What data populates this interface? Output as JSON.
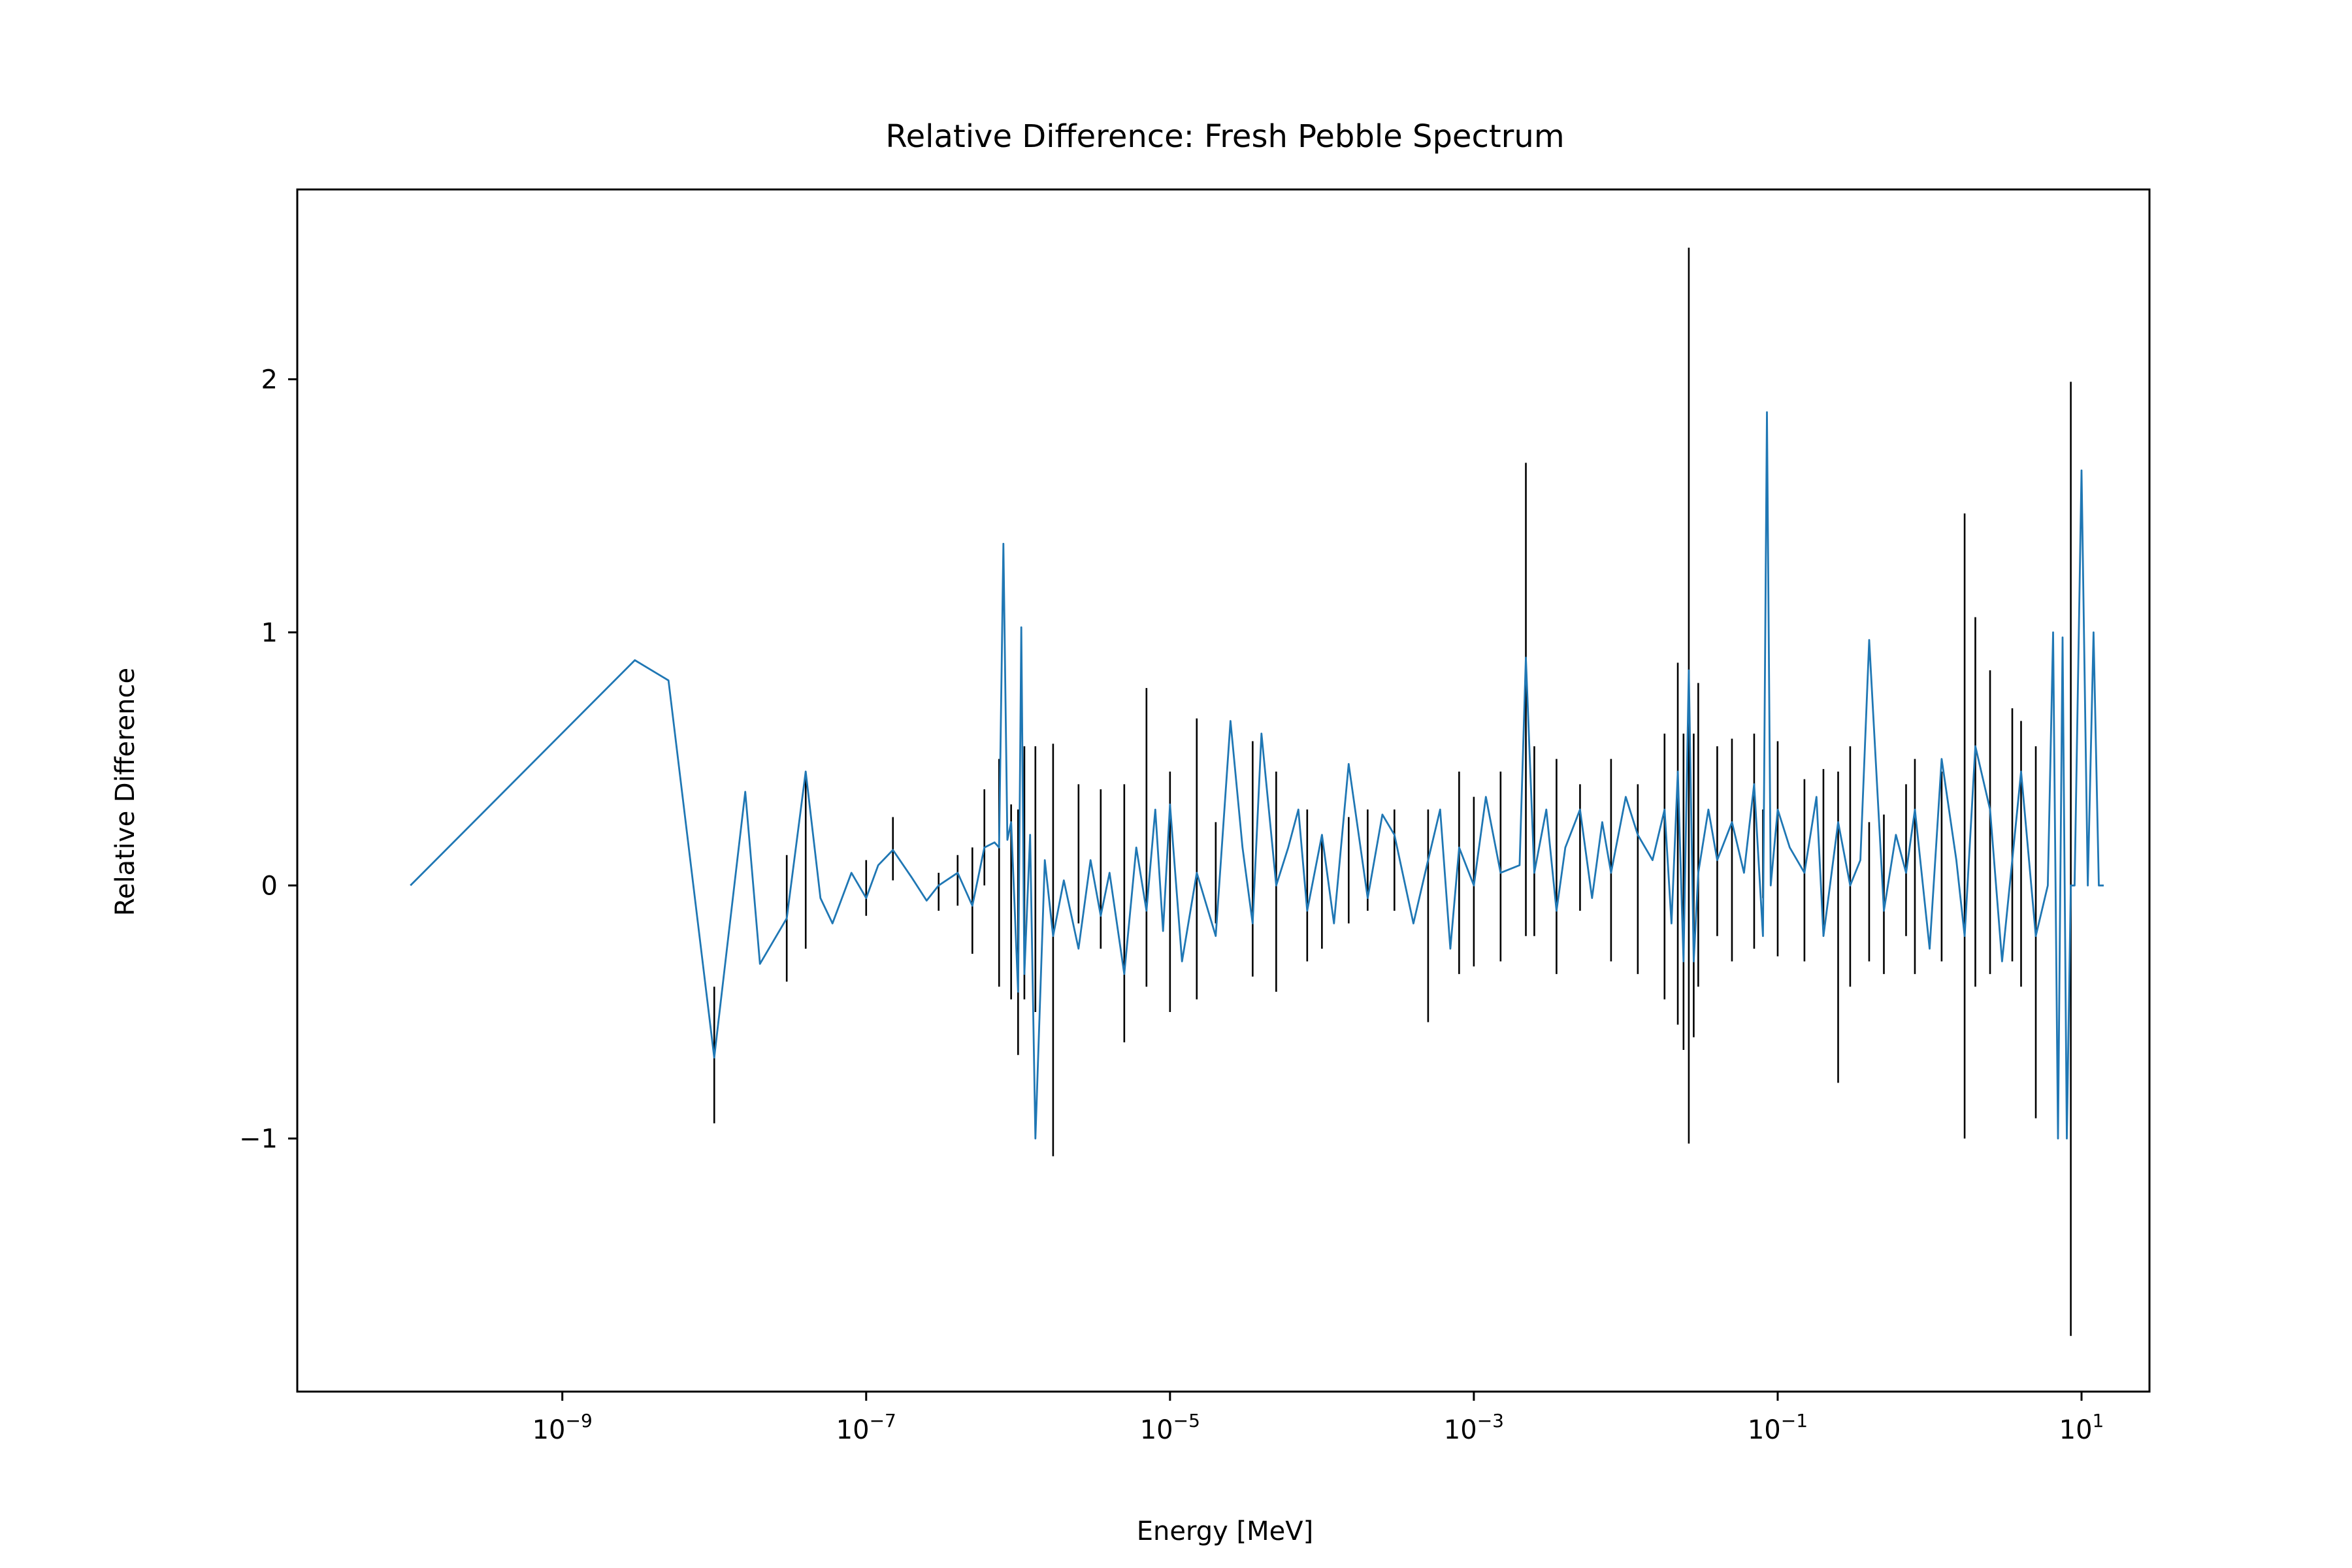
{
  "chart_data": {
    "type": "line",
    "title": "Relative Difference: Fresh Pebble Spectrum",
    "xlabel": "Energy [MeV]",
    "ylabel": "Relative Difference",
    "x_scale": "log",
    "xlim": [
      1.8e-11,
      28
    ],
    "ylim": [
      -2.0,
      2.75
    ],
    "grid": false,
    "x_ticks": [
      {
        "value": 1e-09,
        "base": "10",
        "exp": "−9"
      },
      {
        "value": 1e-07,
        "base": "10",
        "exp": "−7"
      },
      {
        "value": 1e-05,
        "base": "10",
        "exp": "−5"
      },
      {
        "value": 0.001,
        "base": "10",
        "exp": "−3"
      },
      {
        "value": 0.1,
        "base": "10",
        "exp": "−1"
      },
      {
        "value": 10,
        "base": "10",
        "exp": "1"
      }
    ],
    "y_ticks": [
      {
        "value": -1,
        "label": "−1"
      },
      {
        "value": 0,
        "label": "0"
      },
      {
        "value": 1,
        "label": "1"
      },
      {
        "value": 2,
        "label": "2"
      }
    ],
    "series": [
      {
        "color": "#1f77b4",
        "x": [
          1e-10,
          3e-09,
          5e-09,
          1e-08,
          1.6e-08,
          2e-08,
          3e-08,
          4e-08,
          5e-08,
          6e-08,
          8e-08,
          1e-07,
          1.2e-07,
          1.5e-07,
          2e-07,
          2.5e-07,
          3e-07,
          4e-07,
          5e-07,
          6e-07,
          7e-07,
          7.5e-07,
          8e-07,
          8.5e-07,
          9e-07,
          1e-06,
          1.05e-06,
          1.1e-06,
          1.2e-06,
          1.3e-06,
          1.5e-06,
          1.7e-06,
          2e-06,
          2.5e-06,
          3e-06,
          3.5e-06,
          4e-06,
          5e-06,
          6e-06,
          7e-06,
          8e-06,
          9e-06,
          1e-05,
          1.2e-05,
          1.5e-05,
          2e-05,
          2.5e-05,
          3e-05,
          3.5e-05,
          4e-05,
          5e-05,
          6e-05,
          7e-05,
          8e-05,
          0.0001,
          0.00012,
          0.00015,
          0.0002,
          0.00025,
          0.0003,
          0.0004,
          0.0005,
          0.0006,
          0.0007,
          0.0008,
          0.001,
          0.0012,
          0.0015,
          0.002,
          0.0022,
          0.0025,
          0.003,
          0.0035,
          0.004,
          0.005,
          0.006,
          0.007,
          0.008,
          0.01,
          0.012,
          0.015,
          0.018,
          0.02,
          0.022,
          0.024,
          0.026,
          0.028,
          0.03,
          0.035,
          0.04,
          0.05,
          0.06,
          0.07,
          0.08,
          0.085,
          0.09,
          0.1,
          0.12,
          0.15,
          0.18,
          0.2,
          0.25,
          0.3,
          0.35,
          0.4,
          0.5,
          0.6,
          0.7,
          0.8,
          1.0,
          1.2,
          1.5,
          1.7,
          2.0,
          2.5,
          3.0,
          3.5,
          4.0,
          5.0,
          6.0,
          6.5,
          7.0,
          7.5,
          8.0,
          8.5,
          9.0,
          10.0,
          11.0,
          12.0,
          13.0,
          14.0
        ],
        "y": [
          0.0,
          0.89,
          0.81,
          -0.68,
          0.37,
          -0.31,
          -0.13,
          0.45,
          -0.05,
          -0.15,
          0.05,
          -0.05,
          0.08,
          0.14,
          0.03,
          -0.06,
          0.0,
          0.05,
          -0.08,
          0.15,
          0.17,
          0.15,
          1.35,
          0.18,
          0.25,
          -0.42,
          1.02,
          -0.35,
          0.2,
          -1.0,
          0.1,
          -0.2,
          0.02,
          -0.25,
          0.1,
          -0.12,
          0.05,
          -0.35,
          0.15,
          -0.1,
          0.3,
          -0.18,
          0.32,
          -0.3,
          0.05,
          -0.2,
          0.65,
          0.15,
          -0.15,
          0.6,
          0.0,
          0.15,
          0.3,
          -0.1,
          0.2,
          -0.15,
          0.48,
          -0.05,
          0.28,
          0.2,
          -0.15,
          0.1,
          0.3,
          -0.25,
          0.15,
          0.0,
          0.35,
          0.05,
          0.08,
          0.9,
          0.05,
          0.3,
          -0.1,
          0.15,
          0.3,
          -0.05,
          0.25,
          0.05,
          0.35,
          0.2,
          0.1,
          0.3,
          -0.15,
          0.45,
          -0.3,
          0.85,
          -0.3,
          0.05,
          0.3,
          0.1,
          0.25,
          0.05,
          0.4,
          -0.2,
          1.87,
          0.0,
          0.3,
          0.15,
          0.05,
          0.35,
          -0.2,
          0.25,
          0.0,
          0.1,
          0.97,
          -0.1,
          0.2,
          0.05,
          0.3,
          -0.25,
          0.5,
          0.1,
          -0.2,
          0.55,
          0.3,
          -0.3,
          0.1,
          0.45,
          -0.2,
          0.0,
          1.0,
          -1.0,
          0.98,
          -1.0,
          0.0,
          0.0,
          1.64,
          0.0,
          1.0,
          0.0,
          0.0
        ]
      }
    ],
    "error_bars": {
      "color": "#000000",
      "x": [
        1e-08,
        3e-08,
        4e-08,
        1e-07,
        1.5e-07,
        3e-07,
        4e-07,
        5e-07,
        6e-07,
        7.5e-07,
        9e-07,
        1e-06,
        1.1e-06,
        1.3e-06,
        1.7e-06,
        2.5e-06,
        3.5e-06,
        5e-06,
        7e-06,
        1e-05,
        1.5e-05,
        2e-05,
        3.5e-05,
        5e-05,
        8e-05,
        0.0001,
        0.00015,
        0.0002,
        0.0003,
        0.0005,
        0.0008,
        0.001,
        0.0015,
        0.0022,
        0.0025,
        0.0035,
        0.005,
        0.008,
        0.012,
        0.018,
        0.022,
        0.024,
        0.026,
        0.028,
        0.03,
        0.04,
        0.05,
        0.07,
        0.08,
        0.1,
        0.15,
        0.2,
        0.25,
        0.3,
        0.4,
        0.5,
        0.7,
        0.8,
        1.2,
        1.7,
        2.0,
        2.5,
        3.5,
        4.0,
        5.0,
        8.5
      ],
      "low": [
        -0.94,
        -0.38,
        -0.25,
        -0.12,
        0.02,
        -0.1,
        -0.08,
        -0.27,
        0.0,
        -0.4,
        -0.45,
        -0.67,
        -0.45,
        -0.5,
        -1.07,
        -0.15,
        -0.25,
        -0.62,
        -0.4,
        -0.5,
        -0.45,
        -0.15,
        -0.36,
        -0.42,
        -0.3,
        -0.25,
        -0.15,
        -0.1,
        -0.1,
        -0.54,
        -0.35,
        -0.32,
        -0.3,
        -0.2,
        -0.2,
        -0.35,
        -0.1,
        -0.3,
        -0.35,
        -0.45,
        -0.55,
        -0.65,
        -1.02,
        -0.6,
        -0.4,
        -0.2,
        -0.3,
        -0.25,
        -0.05,
        -0.28,
        -0.3,
        -0.2,
        -0.78,
        -0.4,
        -0.3,
        -0.35,
        -0.2,
        -0.35,
        -0.3,
        -1.0,
        -0.4,
        -0.35,
        -0.3,
        -0.4,
        -0.92,
        -1.78
      ],
      "high": [
        -0.4,
        0.12,
        0.45,
        0.1,
        0.27,
        0.05,
        0.12,
        0.15,
        0.38,
        0.5,
        0.32,
        0.3,
        0.55,
        0.55,
        0.56,
        0.4,
        0.38,
        0.4,
        0.78,
        0.45,
        0.66,
        0.25,
        0.57,
        0.45,
        0.3,
        0.2,
        0.27,
        0.3,
        0.3,
        0.3,
        0.45,
        0.35,
        0.45,
        1.67,
        0.55,
        0.5,
        0.4,
        0.5,
        0.4,
        0.6,
        0.88,
        0.6,
        2.52,
        0.6,
        0.8,
        0.55,
        0.58,
        0.6,
        0.3,
        0.57,
        0.42,
        0.46,
        0.45,
        0.55,
        0.25,
        0.28,
        0.4,
        0.5,
        0.45,
        1.47,
        1.06,
        0.85,
        0.7,
        0.65,
        0.55,
        1.99
      ]
    }
  }
}
